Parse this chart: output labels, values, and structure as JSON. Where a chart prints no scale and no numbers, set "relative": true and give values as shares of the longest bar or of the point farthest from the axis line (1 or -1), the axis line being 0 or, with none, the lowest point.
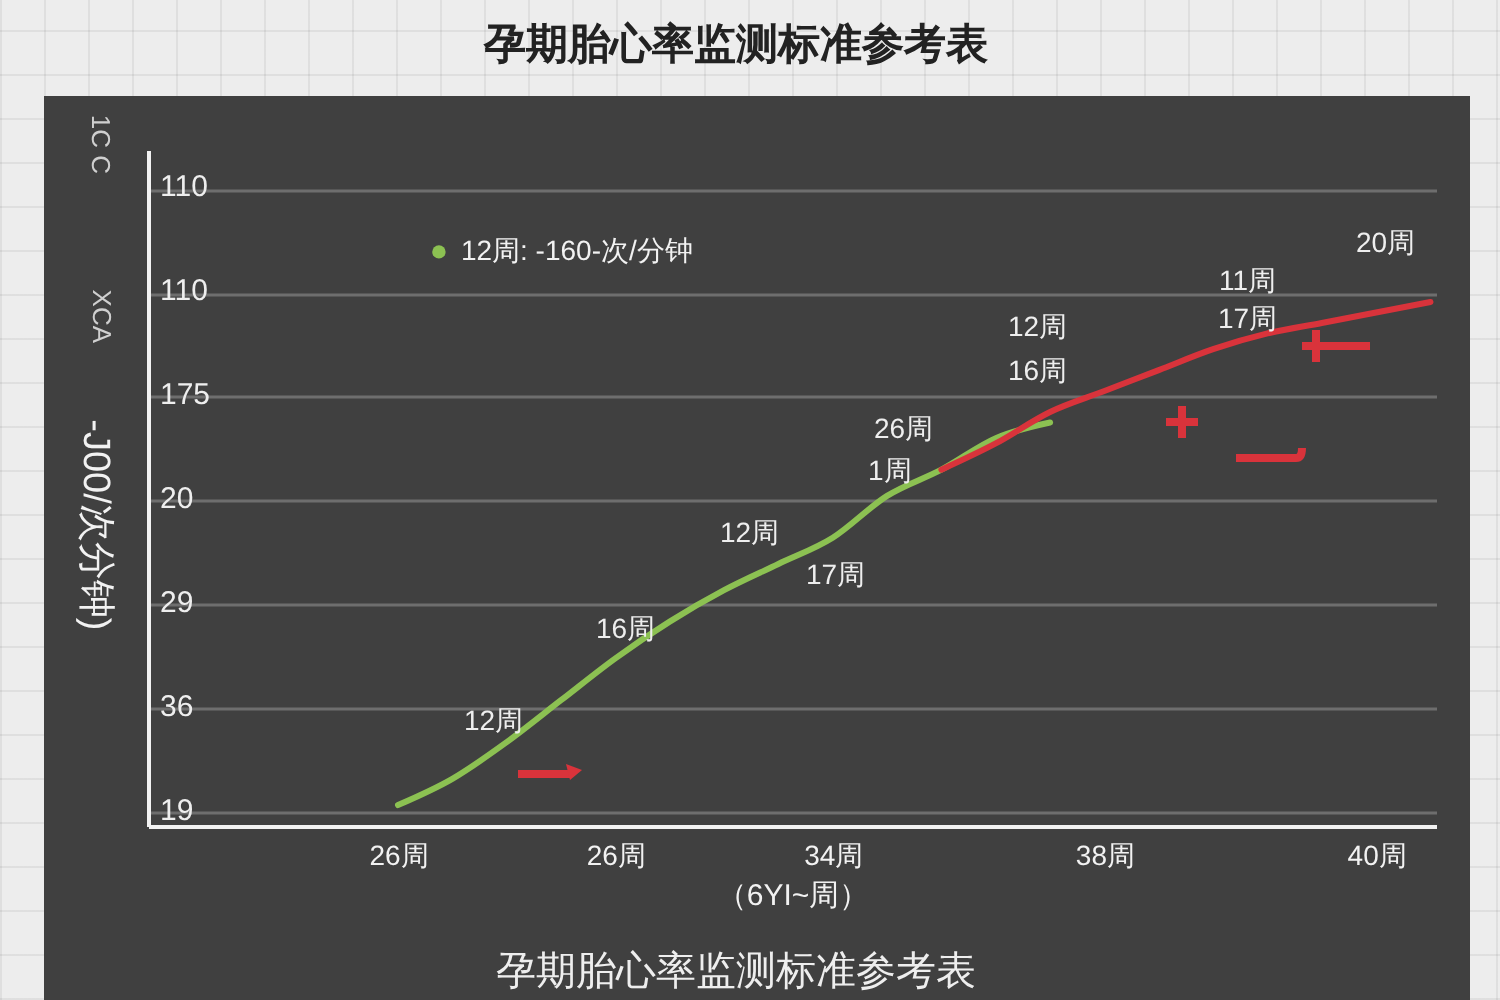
{
  "chart_data": {
    "type": "line",
    "title": "孕期胎心率监测标准参考表",
    "xlabel": "（6YI~周）",
    "relative": true,
    "grid": "y",
    "legend": "top left",
    "categories": [
      "26周",
      null,
      null,
      null,
      "26周",
      null,
      null,
      null,
      "34周",
      null,
      null,
      null,
      null,
      "38周",
      null,
      null,
      null,
      null,
      "40周",
      null
    ],
    "series": [
      {
        "name": "12周: -160-次/分钟",
        "color": "#8cc152",
        "values": [
          0.04,
          0.09,
          0.16,
          0.24,
          0.32,
          0.39,
          0.45,
          0.5,
          0.55,
          0.63,
          0.68,
          0.74,
          0.77,
          null,
          null,
          null,
          null,
          null,
          null,
          null
        ]
      },
      {
        "color": "#d9333b",
        "values": [
          null,
          null,
          null,
          null,
          null,
          null,
          null,
          null,
          null,
          null,
          0.68,
          0.73,
          0.79,
          0.83,
          0.87,
          0.91,
          0.94,
          0.96,
          0.98,
          1
        ]
      }
    ],
    "annotations": [
      "1C C",
      "XCA",
      "-J00/次分钟)",
      "110",
      "110",
      "175",
      "20",
      "29",
      "36",
      "19",
      "20周",
      "11周",
      "17周",
      "12周",
      "16周",
      "26周",
      "1周",
      "12周",
      "17周",
      "16周",
      "12周",
      "孕期胎心率监测标准参考表"
    ]
  }
}
